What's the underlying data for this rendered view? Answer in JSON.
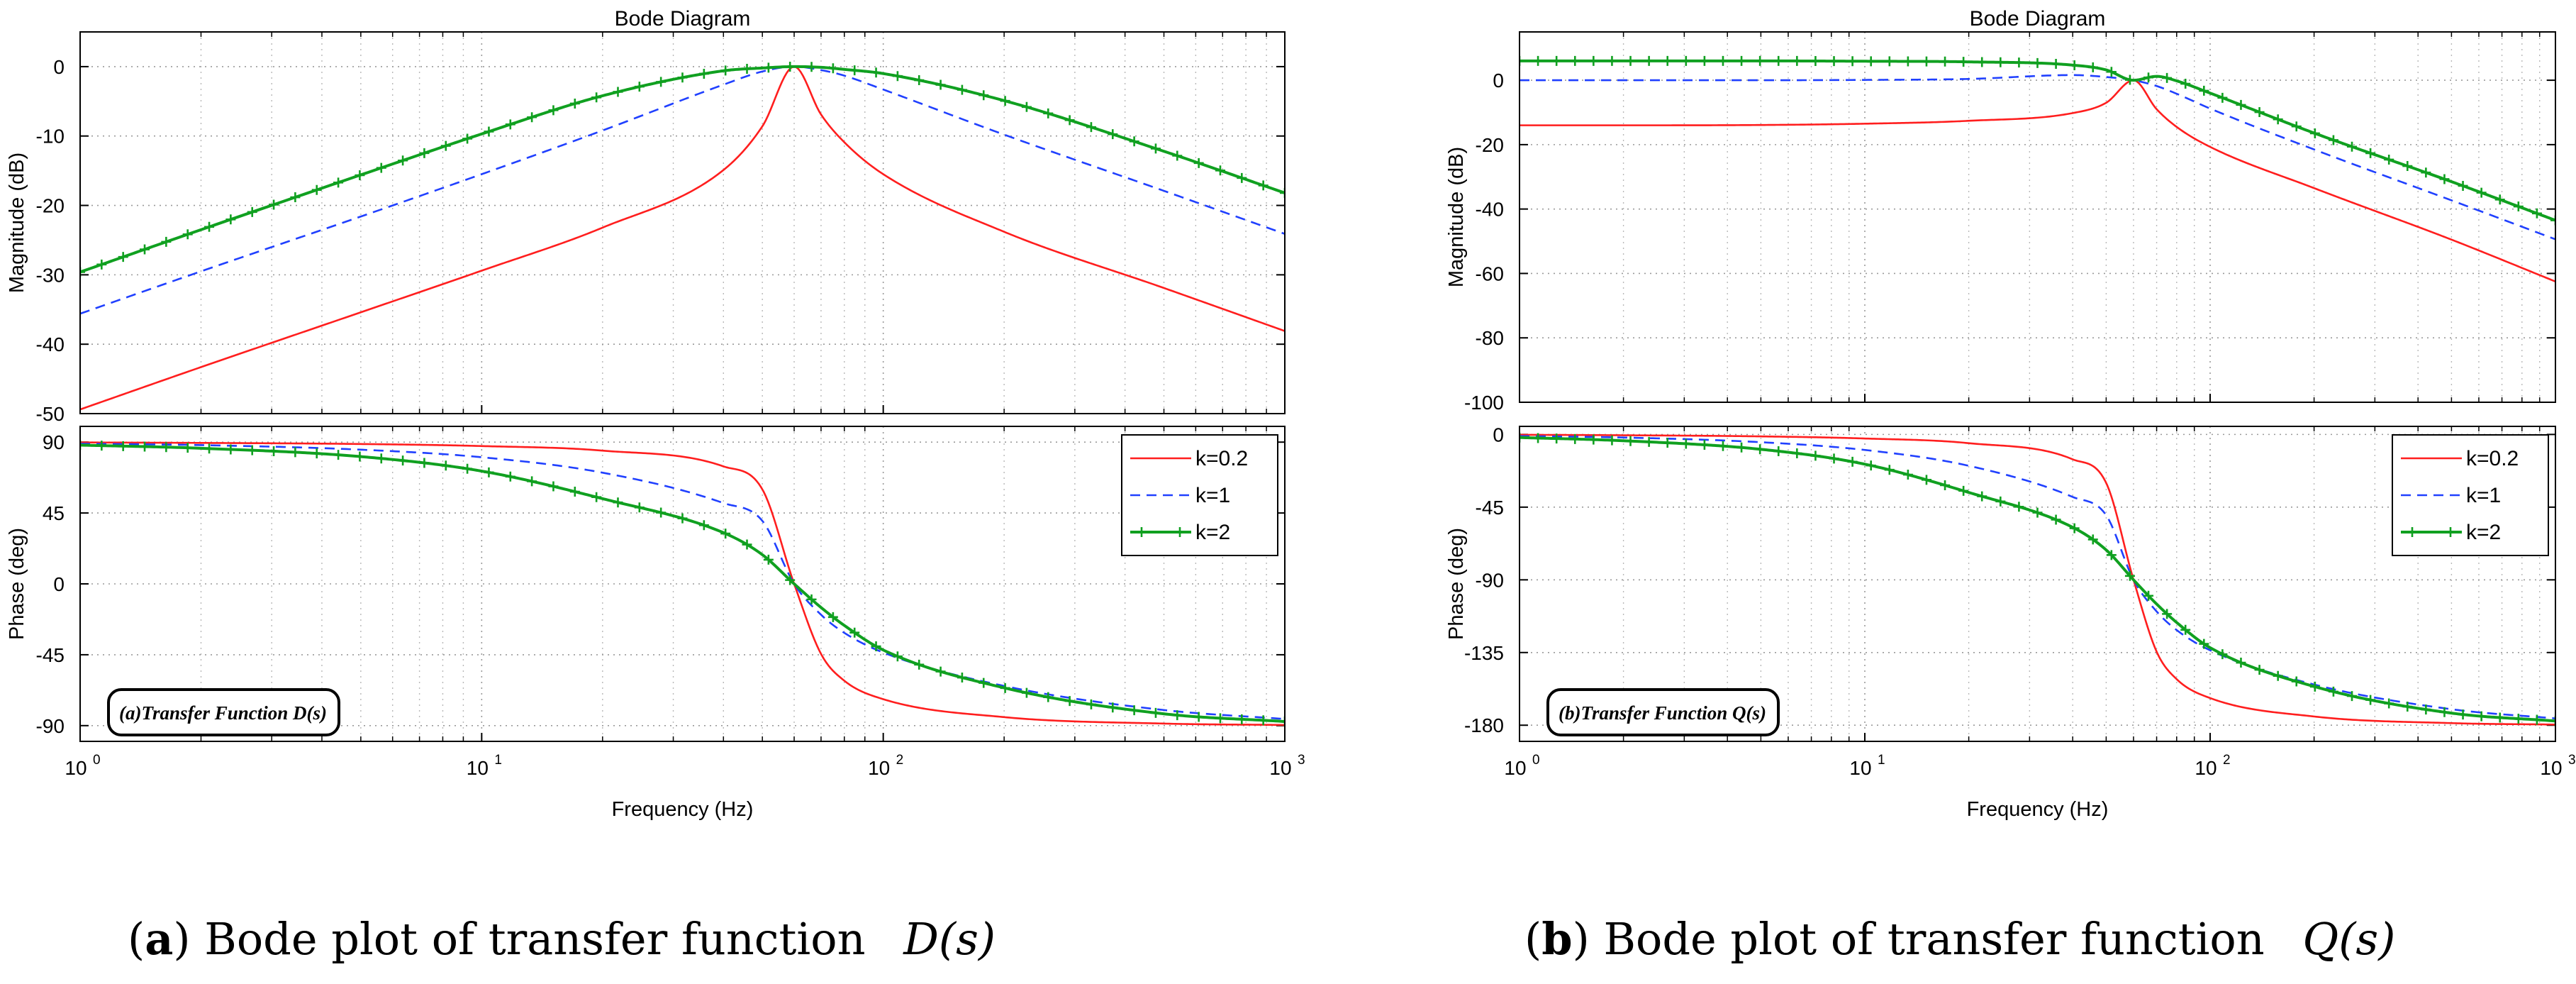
{
  "chart_data": [
    {
      "type": "line",
      "id": "a",
      "title": "Bode Diagram",
      "xlabel": "Frequency  (Hz)",
      "xscale": "log",
      "xlim": [
        1,
        1000
      ],
      "x_ticks": [
        {
          "base": "10",
          "exp": "0"
        },
        {
          "base": "10",
          "exp": "1"
        },
        {
          "base": "10",
          "exp": "2"
        },
        {
          "base": "10",
          "exp": "3"
        }
      ],
      "center_frequency_hz": 60,
      "magnitude": {
        "ylabel": "Magnitude (dB)",
        "ylim": [
          -50,
          5
        ],
        "yticks": [
          0,
          -10,
          -20,
          -30,
          -40,
          -50
        ],
        "ytick_labels": [
          "0",
          "-10",
          "-20",
          "-30",
          "-40",
          "-50"
        ]
      },
      "phase": {
        "ylabel": "Phase (deg)",
        "ylim": [
          -100,
          100
        ],
        "yticks": [
          90,
          45,
          0,
          -45,
          -90
        ],
        "ytick_labels": [
          "90",
          "45",
          "0",
          "-45",
          "-90"
        ]
      },
      "series": [
        {
          "name": "k=0.2",
          "color": "#ff1e1e",
          "style": "solid",
          "x": [
            1,
            2,
            5,
            10,
            20,
            40,
            50,
            60,
            70,
            80,
            100,
            200,
            500,
            1000
          ],
          "magnitude_db": [
            -49.4,
            -43.3,
            -35.4,
            -29.4,
            -23.2,
            -14.9,
            -8.6,
            0,
            -6.9,
            -10.9,
            -15.5,
            -23.8,
            -31.9,
            -38.1
          ],
          "phase_deg": [
            89.8,
            89.5,
            88.8,
            87.5,
            84.6,
            74.6,
            60,
            0,
            -44.5,
            -61.5,
            -73.2,
            -84.6,
            -88.7,
            -89.6
          ]
        },
        {
          "name": "k=1",
          "color": "#2040ff",
          "style": "dashed",
          "x": [
            1,
            2,
            5,
            10,
            20,
            40,
            50,
            60,
            70,
            80,
            100,
            200,
            500,
            1000
          ],
          "magnitude_db": [
            -35.6,
            -29.5,
            -21.6,
            -15.5,
            -9.2,
            -2.6,
            -0.7,
            0,
            -0.5,
            -1.3,
            -3.3,
            -9.8,
            -17.9,
            -24.1
          ],
          "phase_deg": [
            89.0,
            88.1,
            85.2,
            80.4,
            70.6,
            51.3,
            40,
            0,
            -19.6,
            -31.1,
            -43.6,
            -64.8,
            -80.1,
            -85.8
          ]
        },
        {
          "name": "k=2",
          "color": "#10a020",
          "style": "solid-plus",
          "x": [
            1,
            2,
            5,
            10,
            20,
            40,
            50,
            60,
            70,
            80,
            100,
            200,
            500,
            1000
          ],
          "magnitude_db": [
            -29.6,
            -23.5,
            -15.6,
            -9.7,
            -4.2,
            -0.6,
            -0.2,
            0,
            -0.1,
            -0.4,
            -1.0,
            -4.9,
            -12.2,
            -18.2
          ],
          "phase_deg": [
            88.1,
            86.1,
            80.8,
            71.6,
            54.1,
            32.5,
            18.5,
            0,
            -15.0,
            -26.4,
            -42.0,
            -66.0,
            -82.5,
            -87.4
          ]
        }
      ],
      "legend": {
        "position": "top-right of phase plot",
        "entries": [
          "k=0.2",
          "k=1",
          "k=2"
        ]
      },
      "annotation": "(a)Transfer Function D(s)",
      "caption": {
        "label": "a",
        "text": ") Bode plot of transfer function ",
        "math": "D(s)",
        "open": "("
      }
    },
    {
      "type": "line",
      "id": "b",
      "title": "Bode Diagram",
      "xlabel": "Frequency  (Hz)",
      "xscale": "log",
      "xlim": [
        1,
        1000
      ],
      "x_ticks": [
        {
          "base": "10",
          "exp": "0"
        },
        {
          "base": "10",
          "exp": "1"
        },
        {
          "base": "10",
          "exp": "2"
        },
        {
          "base": "10",
          "exp": "3"
        }
      ],
      "center_frequency_hz": 60,
      "magnitude": {
        "ylabel": "Magnitude (dB)",
        "ylim": [
          -100,
          15
        ],
        "yticks": [
          0,
          -20,
          -40,
          -60,
          -80,
          -100
        ],
        "ytick_labels": [
          "0",
          "-20",
          "-40",
          "-60",
          "-80",
          "-100"
        ]
      },
      "phase": {
        "ylabel": "Phase (deg)",
        "ylim": [
          -190,
          5
        ],
        "yticks": [
          0,
          -45,
          -90,
          -135,
          -180
        ],
        "ytick_labels": [
          "0",
          "-45",
          "-90",
          "-135",
          "-180"
        ]
      },
      "series": [
        {
          "name": "k=0.2",
          "color": "#ff1e1e",
          "style": "solid",
          "x": [
            1,
            2,
            5,
            10,
            20,
            40,
            50,
            60,
            70,
            80,
            100,
            200,
            500,
            1000
          ],
          "magnitude_db": [
            -14,
            -14,
            -13.9,
            -13.5,
            -12.6,
            -10.2,
            -7,
            0,
            -9,
            -14.5,
            -20.7,
            -33.5,
            -49.5,
            -62.5
          ],
          "phase_deg": [
            -0.2,
            -0.5,
            -1.2,
            -2.5,
            -5.4,
            -15.4,
            -30,
            -90,
            -134.5,
            -151.5,
            -163.2,
            -174.6,
            -178.7,
            -179.6
          ]
        },
        {
          "name": "k=1",
          "color": "#2040ff",
          "style": "dashed",
          "x": [
            1,
            2,
            5,
            10,
            20,
            40,
            50,
            60,
            70,
            80,
            100,
            200,
            500,
            1000
          ],
          "magnitude_db": [
            0,
            0,
            0,
            0.1,
            0.4,
            1.6,
            1.0,
            0,
            -1.8,
            -4.2,
            -8.8,
            -21.5,
            -37.3,
            -49.4
          ],
          "phase_deg": [
            -1.0,
            -1.9,
            -4.8,
            -9.6,
            -19.4,
            -38.7,
            -50,
            -90,
            -109.6,
            -121.1,
            -133.6,
            -154.8,
            -170.1,
            -175.8
          ]
        },
        {
          "name": "k=2",
          "color": "#10a020",
          "style": "solid-plus",
          "x": [
            1,
            2,
            5,
            10,
            20,
            40,
            50,
            60,
            70,
            80,
            100,
            200,
            500,
            1000
          ],
          "magnitude_db": [
            6,
            6,
            6,
            5.9,
            5.7,
            4.7,
            3.2,
            0,
            1.2,
            -0.2,
            -4.0,
            -16.4,
            -31.5,
            -43.5
          ],
          "phase_deg": [
            -1.9,
            -3.9,
            -9.2,
            -18.4,
            -35.9,
            -57.5,
            -71.5,
            -90,
            -105,
            -116.4,
            -132,
            -156,
            -172.5,
            -177.4
          ]
        }
      ],
      "legend": {
        "position": "top-right of phase plot",
        "entries": [
          "k=0.2",
          "k=1",
          "k=2"
        ]
      },
      "annotation": "(b)Transfer Function Q(s)",
      "caption": {
        "label": "b",
        "text": ") Bode plot of transfer function ",
        "math": "Q(s)",
        "open": "("
      }
    }
  ]
}
